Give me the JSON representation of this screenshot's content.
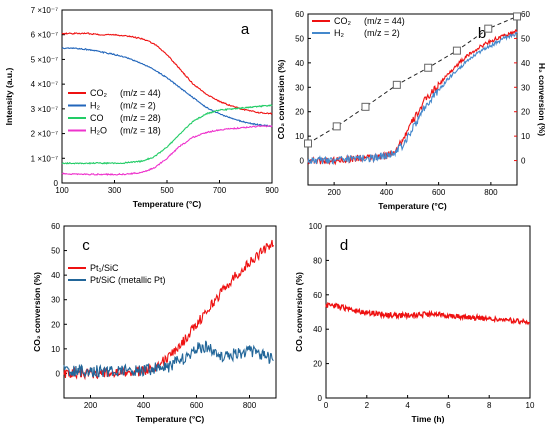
{
  "chart_data": [
    {
      "type": "line",
      "panel_label": "a",
      "xlabel": "Temperature (°C)",
      "ylabel": "Intensity (a.u.)",
      "xlim": [
        100,
        900
      ],
      "ylim": [
        0,
        7e-07
      ],
      "x_ticks": [
        "100",
        "300",
        "500",
        "700",
        "900"
      ],
      "y_ticks": [
        "0",
        "1 ×10⁻⁷",
        "2 ×10⁻⁷",
        "3 ×10⁻⁷",
        "4 ×10⁻⁷",
        "5 ×10⁻⁷",
        "6 ×10⁻⁷",
        "7 ×10⁻⁷"
      ],
      "legend_position": "middle-left",
      "series": [
        {
          "name": "CO₂",
          "note": "(m/z = 44)",
          "color": "#ee1111",
          "x": [
            100,
            150,
            200,
            250,
            300,
            350,
            400,
            450,
            500,
            550,
            600,
            650,
            700,
            750,
            800,
            850,
            900
          ],
          "y": [
            6.05e-07,
            6.05e-07,
            6.05e-07,
            6e-07,
            6e-07,
            5.95e-07,
            5.85e-07,
            5.65e-07,
            5.2e-07,
            4.6e-07,
            4e-07,
            3.6e-07,
            3.3e-07,
            3.1e-07,
            2.95e-07,
            2.85e-07,
            2.8e-07
          ]
        },
        {
          "name": "H₂",
          "note": "(m/z = 2)",
          "color": "#2266bb",
          "x": [
            100,
            150,
            200,
            250,
            300,
            350,
            400,
            450,
            500,
            550,
            600,
            650,
            700,
            750,
            800,
            850,
            900
          ],
          "y": [
            5.45e-07,
            5.45e-07,
            5.4e-07,
            5.3e-07,
            5.2e-07,
            5.05e-07,
            4.85e-07,
            4.6e-07,
            4.25e-07,
            3.85e-07,
            3.45e-07,
            3.05e-07,
            2.8e-07,
            2.6e-07,
            2.45e-07,
            2.35e-07,
            2.3e-07
          ]
        },
        {
          "name": "CO",
          "note": "(m/z = 28)",
          "color": "#22cc66",
          "x": [
            100,
            150,
            200,
            250,
            300,
            350,
            400,
            450,
            500,
            550,
            600,
            650,
            700,
            750,
            800,
            850,
            900
          ],
          "y": [
            8e-08,
            8e-08,
            8e-08,
            8e-08,
            8e-08,
            8.2e-08,
            8.8e-08,
            1.05e-07,
            1.45e-07,
            2e-07,
            2.5e-07,
            2.8e-07,
            2.95e-07,
            3e-07,
            3.05e-07,
            3.1e-07,
            3.15e-07
          ]
        },
        {
          "name": "H₂O",
          "note": "(m/z = 18)",
          "color": "#ee33cc",
          "x": [
            100,
            150,
            200,
            250,
            300,
            350,
            400,
            450,
            500,
            550,
            600,
            650,
            700,
            750,
            800,
            850,
            900
          ],
          "y": [
            3.8e-08,
            3.6e-08,
            3.5e-08,
            3.5e-08,
            3.5e-08,
            3.6e-08,
            4.2e-08,
            6e-08,
            1e-07,
            1.5e-07,
            1.85e-07,
            2.05e-07,
            2.15e-07,
            2.2e-07,
            2.25e-07,
            2.3e-07,
            2.3e-07
          ]
        }
      ]
    },
    {
      "type": "line",
      "panel_label": "b",
      "xlabel": "Temperature (°C)",
      "ylabel": "CO₂ conversion (%)",
      "ylabel_right": "H₂ conversion (%)",
      "xlim": [
        100,
        900
      ],
      "ylim": [
        -10,
        60
      ],
      "ylim_right": [
        -10,
        60
      ],
      "x_ticks": [
        "200",
        "400",
        "600",
        "800"
      ],
      "y_ticks": [
        "0",
        "10",
        "20",
        "30",
        "40",
        "50",
        "60"
      ],
      "y_right_ticks": [
        "0",
        "10",
        "20",
        "30",
        "40",
        "50",
        "60"
      ],
      "legend_position": "top-left",
      "series": [
        {
          "name": "CO₂",
          "note": "(m/z = 44)",
          "color": "#ee1111",
          "x": [
            100,
            150,
            200,
            250,
            300,
            350,
            400,
            430,
            460,
            500,
            550,
            600,
            650,
            700,
            750,
            800,
            850,
            900
          ],
          "y": [
            0,
            0,
            0,
            0.5,
            1,
            1,
            2,
            4,
            8,
            16,
            25,
            31,
            37,
            42,
            46,
            49,
            51,
            53
          ]
        },
        {
          "name": "H₂",
          "note": "(m/z = 2)",
          "color": "#4488cc",
          "x": [
            100,
            150,
            200,
            250,
            300,
            350,
            400,
            430,
            460,
            500,
            550,
            600,
            650,
            700,
            750,
            800,
            850,
            900
          ],
          "y": [
            0,
            0,
            0,
            0.5,
            1,
            1,
            2,
            3,
            6,
            13,
            22,
            29,
            35,
            40,
            44,
            47,
            50,
            52
          ]
        },
        {
          "name": "",
          "style": "dashed-square-markers",
          "color": "#222222",
          "x": [
            100,
            210,
            320,
            440,
            560,
            670,
            790,
            900
          ],
          "y": [
            7,
            14,
            22,
            31,
            38,
            45,
            54,
            59
          ]
        }
      ]
    },
    {
      "type": "line",
      "panel_label": "c",
      "xlabel": "Temperature (°C)",
      "ylabel": "CO₂ conversion (%)",
      "xlim": [
        100,
        900
      ],
      "ylim": [
        -10,
        60
      ],
      "x_ticks": [
        "200",
        "400",
        "600",
        "800"
      ],
      "y_ticks": [
        "0",
        "10",
        "20",
        "30",
        "40",
        "50",
        "60"
      ],
      "legend_position": "upper-left",
      "series": [
        {
          "name": "Pt₁/SiC",
          "color": "#ee1111",
          "x": [
            100,
            200,
            300,
            350,
            400,
            450,
            500,
            550,
            600,
            650,
            700,
            750,
            800,
            850,
            890
          ],
          "y": [
            0,
            0,
            0,
            0.5,
            1,
            3,
            7,
            13,
            20,
            27,
            34,
            40,
            45,
            50,
            53
          ]
        },
        {
          "name": "Pt/SiC (metallic Pt)",
          "color": "#226699",
          "x": [
            100,
            200,
            300,
            400,
            450,
            500,
            550,
            600,
            630,
            650,
            700,
            750,
            800,
            850,
            890
          ],
          "y": [
            1,
            1,
            1,
            1,
            2,
            3,
            6,
            10,
            11,
            10,
            7,
            8,
            9,
            8,
            5
          ]
        }
      ]
    },
    {
      "type": "line",
      "panel_label": "d",
      "xlabel": "Time (h)",
      "ylabel": "CO₂ conversion (%)",
      "xlim": [
        0,
        10
      ],
      "ylim": [
        0,
        100
      ],
      "x_ticks": [
        "0",
        "2",
        "4",
        "6",
        "8",
        "10"
      ],
      "y_ticks": [
        "0",
        "20",
        "40",
        "60",
        "80",
        "100"
      ],
      "series": [
        {
          "name": "",
          "color": "#ee1111",
          "x": [
            0,
            0.5,
            1,
            1.5,
            2,
            2.5,
            3,
            3.5,
            4,
            4.5,
            5,
            5.5,
            6,
            6.5,
            7,
            7.5,
            8,
            8.5,
            9,
            9.5,
            10
          ],
          "y": [
            54,
            53.5,
            52,
            50.5,
            49.5,
            49,
            48.5,
            48,
            48,
            48.5,
            48.5,
            48.5,
            48,
            47.5,
            47,
            46.5,
            46,
            45.5,
            45,
            44.5,
            44
          ]
        }
      ]
    }
  ]
}
